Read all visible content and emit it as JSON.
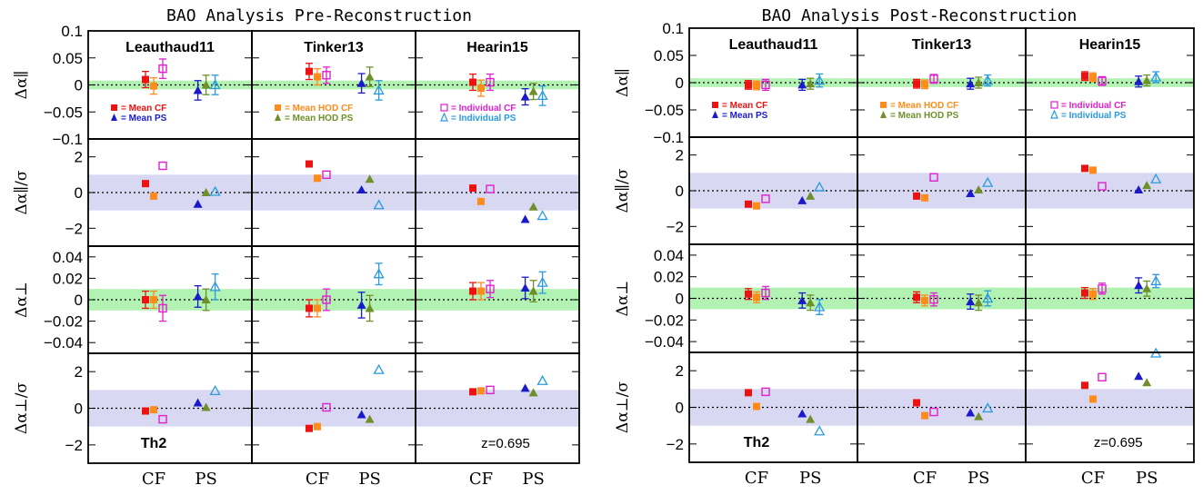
{
  "colors": {
    "mean_cf": "#ee1111",
    "mean_ps": "#1a1acc",
    "mean_hod_cf": "#ff8c1a",
    "mean_hod_ps": "#6f8f2a",
    "individual_cf": "#e020d0",
    "individual_ps": "#2a9ae0",
    "band_alpha": "#b2f2b2",
    "band_sigma": "#d8d8f2"
  },
  "rows": [
    {
      "id": "apar",
      "ylabel": "Δα∥",
      "ticks": [
        "0.1",
        "0.05",
        "0",
        "−0.05",
        "−0.1"
      ],
      "tick_values": [
        0.1,
        0.05,
        0,
        -0.05,
        -0.1
      ],
      "ylim": [
        -0.1,
        0.1
      ],
      "band": [
        -0.008,
        0.008
      ]
    },
    {
      "id": "spar",
      "ylabel": "Δα∥/σ",
      "ticks": [
        "2",
        "0",
        "−2"
      ],
      "tick_values": [
        2,
        0,
        -2
      ],
      "ylim": [
        -3,
        3
      ],
      "band": [
        -1,
        1
      ]
    },
    {
      "id": "aperp",
      "ylabel": "Δα⊥",
      "ticks": [
        "0.04",
        "0.02",
        "0",
        "−0.02",
        "−0.04"
      ],
      "tick_values": [
        0.04,
        0.02,
        0,
        -0.02,
        -0.04
      ],
      "ylim": [
        -0.05,
        0.05
      ],
      "band": [
        -0.01,
        0.01
      ]
    },
    {
      "id": "sperp",
      "ylabel": "Δα⊥/σ",
      "ticks": [
        "2",
        "0",
        "−2"
      ],
      "tick_values": [
        2,
        0,
        -2
      ],
      "ylim": [
        -3,
        3
      ],
      "band": [
        -1,
        1
      ]
    }
  ],
  "columns": [
    "Leauthaud11",
    "Tinker13",
    "Hearin15"
  ],
  "xticks": [
    "CF",
    "PS"
  ],
  "series_keys": [
    "mean_cf",
    "mean_hod_cf",
    "individual_cf",
    "mean_ps",
    "mean_hod_ps",
    "individual_ps"
  ],
  "markers": {
    "mean_cf": "square",
    "mean_hod_cf": "square",
    "individual_cf": "open-square",
    "mean_ps": "triangle",
    "mean_hod_ps": "triangle",
    "individual_ps": "open-triangle"
  },
  "legends": [
    {
      "column": 0,
      "items": [
        {
          "series": "mean_cf",
          "label": "= Mean CF"
        },
        {
          "series": "mean_ps",
          "label": "= Mean PS"
        }
      ]
    },
    {
      "column": 1,
      "items": [
        {
          "series": "mean_hod_cf",
          "label": "= Mean HOD CF"
        },
        {
          "series": "mean_hod_ps",
          "label": "= Mean HOD PS"
        }
      ]
    },
    {
      "column": 2,
      "items": [
        {
          "series": "individual_cf",
          "label": "= Individual CF"
        },
        {
          "series": "individual_ps",
          "label": "= Individual PS"
        }
      ]
    }
  ],
  "annotations": {
    "left": "Th2",
    "right": "z=0.695"
  },
  "chart_data": [
    {
      "type": "scatter",
      "title": "BAO Analysis Pre-Reconstruction",
      "data": {
        "apar": [
          {
            "y": [
              0.01,
              -0.002,
              0.03,
              -0.01,
              0.0,
              0.0
            ],
            "err": [
              0.015,
              0.015,
              0.018,
              0.018,
              0.018,
              0.018
            ]
          },
          {
            "y": [
              0.025,
              0.015,
              0.018,
              0.003,
              0.015,
              -0.01
            ],
            "err": [
              0.015,
              0.015,
              0.015,
              0.018,
              0.018,
              0.018
            ]
          },
          {
            "y": [
              0.005,
              -0.006,
              0.005,
              -0.022,
              -0.012,
              -0.02
            ],
            "err": [
              0.015,
              0.015,
              0.015,
              0.015,
              0.015,
              0.018
            ]
          }
        ],
        "spar": [
          {
            "y": [
              0.5,
              -0.2,
              1.5,
              -0.65,
              0.0,
              0.05
            ]
          },
          {
            "y": [
              1.6,
              0.8,
              1.0,
              0.15,
              0.75,
              -0.7
            ]
          },
          {
            "y": [
              0.25,
              -0.5,
              0.2,
              -1.5,
              -0.8,
              -1.3
            ]
          }
        ],
        "aperp": [
          {
            "y": [
              0.0,
              0.0,
              -0.008,
              0.003,
              0.0,
              0.012
            ],
            "err": [
              0.008,
              0.008,
              0.012,
              0.01,
              0.01,
              0.012
            ]
          },
          {
            "y": [
              -0.008,
              -0.008,
              0.0,
              -0.005,
              -0.008,
              0.024
            ],
            "err": [
              0.008,
              0.008,
              0.01,
              0.012,
              0.012,
              0.01
            ]
          },
          {
            "y": [
              0.008,
              0.008,
              0.01,
              0.011,
              0.008,
              0.016
            ],
            "err": [
              0.008,
              0.008,
              0.008,
              0.01,
              0.01,
              0.01
            ]
          }
        ],
        "sperp": [
          {
            "y": [
              -0.15,
              -0.08,
              -0.6,
              0.3,
              0.05,
              0.95
            ]
          },
          {
            "y": [
              -1.1,
              -1.0,
              0.05,
              -0.35,
              -0.6,
              2.1
            ]
          },
          {
            "y": [
              0.9,
              0.95,
              1.0,
              1.1,
              0.85,
              1.5
            ]
          }
        ]
      }
    },
    {
      "type": "scatter",
      "title": "BAO Analysis Post-Reconstruction",
      "data": {
        "apar": [
          {
            "y": [
              -0.004,
              -0.005,
              -0.004,
              -0.004,
              -0.002,
              0.004
            ],
            "err": [
              0.008,
              0.008,
              0.01,
              0.01,
              0.01,
              0.012
            ]
          },
          {
            "y": [
              -0.002,
              -0.003,
              0.007,
              -0.002,
              0.0,
              0.004
            ],
            "err": [
              0.008,
              0.008,
              0.008,
              0.01,
              0.01,
              0.01
            ]
          },
          {
            "y": [
              0.012,
              0.01,
              0.003,
              0.002,
              0.004,
              0.01
            ],
            "err": [
              0.008,
              0.008,
              0.008,
              0.01,
              0.01,
              0.01
            ]
          }
        ],
        "spar": [
          {
            "y": [
              -0.75,
              -0.85,
              -0.45,
              -0.55,
              -0.3,
              0.2
            ]
          },
          {
            "y": [
              -0.3,
              -0.4,
              0.75,
              -0.15,
              0.05,
              0.45
            ]
          },
          {
            "y": [
              1.25,
              1.15,
              0.25,
              0.05,
              0.3,
              0.65
            ]
          }
        ],
        "aperp": [
          {
            "y": [
              0.004,
              0.001,
              0.005,
              -0.002,
              -0.004,
              -0.008
            ],
            "err": [
              0.005,
              0.005,
              0.006,
              0.007,
              0.007,
              0.007
            ]
          },
          {
            "y": [
              0.001,
              -0.002,
              -0.001,
              -0.003,
              -0.004,
              0.0
            ],
            "err": [
              0.005,
              0.005,
              0.006,
              0.007,
              0.007,
              0.007
            ]
          },
          {
            "y": [
              0.005,
              0.004,
              0.009,
              0.012,
              0.009,
              0.016
            ],
            "err": [
              0.005,
              0.005,
              0.005,
              0.007,
              0.007,
              0.006
            ]
          }
        ],
        "sperp": [
          {
            "y": [
              0.8,
              0.05,
              0.85,
              -0.35,
              -0.65,
              -1.3
            ]
          },
          {
            "y": [
              0.25,
              -0.45,
              -0.25,
              -0.3,
              -0.5,
              -0.05
            ]
          },
          {
            "y": [
              1.2,
              0.45,
              1.65,
              1.7,
              1.35,
              2.95
            ]
          }
        ]
      }
    }
  ]
}
